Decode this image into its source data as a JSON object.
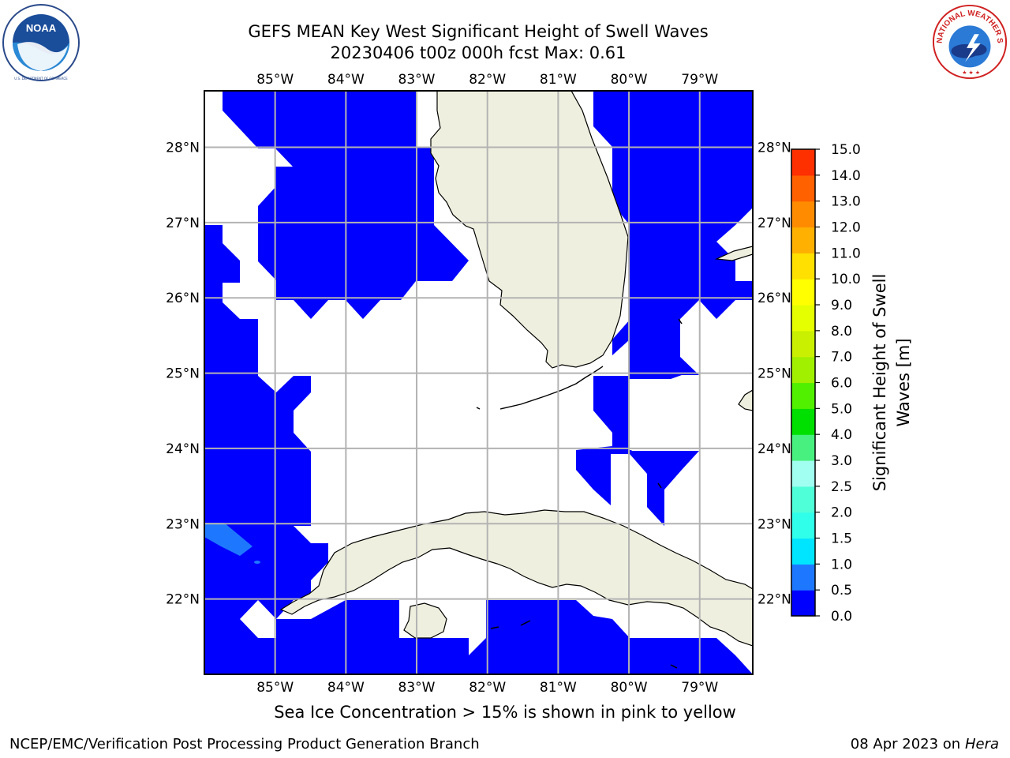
{
  "title_line1": "GEFS MEAN Key West Significant Height of Swell Waves",
  "title_line2": "20230406 t00z 000h fcst   Max: 0.61",
  "subtitle": "Sea Ice Concentration > 15% is shown in pink to yellow",
  "credit_left": "NCEP/EMC/Verification Post Processing Product Generation Branch",
  "credit_right_date": "08 Apr 2023 on",
  "credit_right_host": "Hera",
  "logos": {
    "noaa_text": "NOAA",
    "nws_text": "NATIONAL WEATHER SERVICE"
  },
  "colors": {
    "land": "#efefdf",
    "grid": "#b3b3b3",
    "swell_low": "#0000ff",
    "swell_mid": "#1e78ff"
  },
  "map": {
    "lon_range": [
      -86.0,
      -78.25
    ],
    "lat_range": [
      21.0,
      28.75
    ],
    "lon_ticks": [
      -85,
      -84,
      -83,
      -82,
      -81,
      -80,
      -79
    ],
    "lon_labels": [
      "85°W",
      "84°W",
      "83°W",
      "82°W",
      "81°W",
      "80°W",
      "79°W"
    ],
    "lat_ticks": [
      22,
      23,
      24,
      25,
      26,
      27,
      28
    ],
    "lat_labels": [
      "22°N",
      "23°N",
      "24°N",
      "25°N",
      "26°N",
      "27°N",
      "28°N"
    ],
    "colorbar": {
      "label": "Significant Height of Swell Waves [m]",
      "label_line1": "Significant Height of Swell",
      "label_line2": "Waves [m]",
      "ticks": [
        "0.0",
        "0.5",
        "1.0",
        "1.5",
        "2.0",
        "2.5",
        "3.0",
        "4.0",
        "5.0",
        "6.0",
        "7.0",
        "8.0",
        "9.0",
        "10.0",
        "11.0",
        "12.0",
        "13.0",
        "14.0",
        "15.0"
      ],
      "colors": [
        "#0000ff",
        "#1e78ff",
        "#00e5ff",
        "#30ffea",
        "#4fffd8",
        "#a0fff0",
        "#48f080",
        "#00e000",
        "#50f000",
        "#a0f000",
        "#c8f000",
        "#e6ff00",
        "#ffff00",
        "#ffe000",
        "#ffb000",
        "#ff8c00",
        "#ff6000",
        "#ff3000",
        "#ff0000"
      ]
    }
  }
}
